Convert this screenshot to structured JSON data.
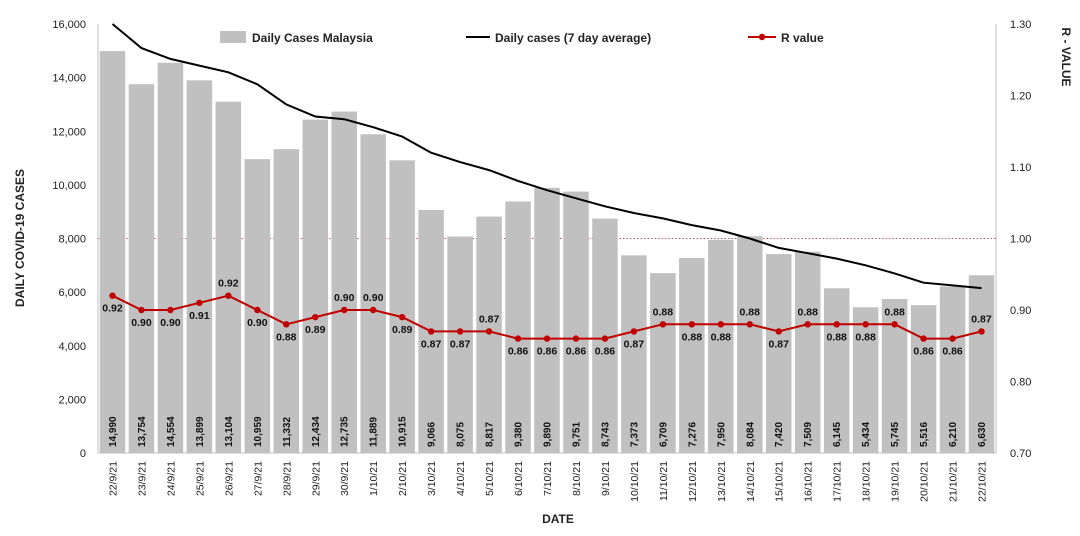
{
  "chart_data": {
    "type": "bar",
    "xlabel": "DATE",
    "ylabel": "DAILY COVID-19 CASES",
    "y2label": "R - VALUE",
    "ylim": [
      0,
      16000
    ],
    "y2lim": [
      0.7,
      1.3
    ],
    "yticks": [
      "0",
      "2,000",
      "4,000",
      "6,000",
      "8,000",
      "10,000",
      "12,000",
      "14,000",
      "16,000"
    ],
    "y2ticks": [
      "0.70",
      "0.80",
      "0.90",
      "1.00",
      "1.10",
      "1.20",
      "1.30"
    ],
    "reference_line": {
      "axis": "y2",
      "value": 1.0,
      "style": "dotted",
      "color": "#b22222"
    },
    "legend_position": "top",
    "categories": [
      "22/9/21",
      "23/9/21",
      "24/9/21",
      "25/9/21",
      "26/9/21",
      "27/9/21",
      "28/9/21",
      "29/9/21",
      "30/9/21",
      "1/10/21",
      "2/10/21",
      "3/10/21",
      "4/10/21",
      "5/10/21",
      "6/10/21",
      "7/10/21",
      "8/10/21",
      "9/10/21",
      "10/10/21",
      "11/10/21",
      "12/10/21",
      "13/10/21",
      "14/10/21",
      "15/10/21",
      "16/10/21",
      "17/10/21",
      "18/10/21",
      "19/10/21",
      "20/10/21",
      "21/10/21",
      "22/10/21"
    ],
    "series": [
      {
        "name": "Daily Cases Malaysia",
        "type": "bar",
        "axis": "y",
        "color": "#c0c0c0",
        "values": [
          14990,
          13754,
          14554,
          13899,
          13104,
          10959,
          11332,
          12434,
          12735,
          11889,
          10915,
          9066,
          8075,
          8817,
          9380,
          9890,
          9751,
          8743,
          7373,
          6709,
          7276,
          7950,
          8084,
          7420,
          7509,
          6145,
          5434,
          5745,
          5516,
          6210,
          6630
        ],
        "labels": [
          "14,990",
          "13,754",
          "14,554",
          "13,899",
          "13,104",
          "10,959",
          "11,332",
          "12,434",
          "12,735",
          "11,889",
          "10,915",
          "9,066",
          "8,075",
          "8,817",
          "9,380",
          "9,890",
          "9,751",
          "8,743",
          "7,373",
          "6,709",
          "7,276",
          "7,950",
          "8,084",
          "7,420",
          "7,509",
          "6,145",
          "5,434",
          "5,745",
          "5,516",
          "6,210",
          "6,630"
        ]
      },
      {
        "name": "Daily cases (7 day average)",
        "type": "line",
        "axis": "y",
        "color": "#000000",
        "values": [
          16000,
          15100,
          14700,
          14450,
          14200,
          13750,
          13000,
          12550,
          12450,
          12150,
          11800,
          11200,
          10850,
          10550,
          10150,
          9800,
          9500,
          9200,
          8950,
          8750,
          8500,
          8300,
          8000,
          7650,
          7450,
          7250,
          7000,
          6700,
          6350,
          6250,
          6150
        ]
      },
      {
        "name": "R value",
        "type": "line",
        "axis": "y2",
        "color": "#c00000",
        "values": [
          0.92,
          0.9,
          0.9,
          0.91,
          0.92,
          0.9,
          0.88,
          0.89,
          0.9,
          0.9,
          0.89,
          0.87,
          0.87,
          0.87,
          0.86,
          0.86,
          0.86,
          0.86,
          0.87,
          0.88,
          0.88,
          0.88,
          0.88,
          0.87,
          0.88,
          0.88,
          0.88,
          0.88,
          0.86,
          0.86,
          0.87
        ],
        "labels": [
          "0.92",
          "0.90",
          "0.90",
          "0.91",
          "0.92",
          "0.90",
          "0.88",
          "0.89",
          "0.90",
          "0.90",
          "0.89",
          "0.87",
          "0.87",
          "0.87",
          "0.86",
          "0.86",
          "0.86",
          "0.86",
          "0.87",
          "0.88",
          "0.88",
          "0.88",
          "0.88",
          "0.87",
          "0.88",
          "0.88",
          "0.88",
          "0.88",
          "0.86",
          "0.86",
          "0.87"
        ]
      }
    ]
  }
}
